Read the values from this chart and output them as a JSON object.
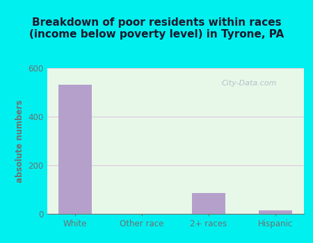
{
  "categories": [
    "White",
    "Other race",
    "2+ races",
    "Hispanic"
  ],
  "values": [
    530,
    0,
    85,
    15
  ],
  "bar_color": "#b5a0cc",
  "title_line1": "Breakdown of poor residents within races",
  "title_line2": "(income below poverty level) in Tyrone, PA",
  "ylabel": "absolute numbers",
  "ylim": [
    0,
    600
  ],
  "yticks": [
    0,
    200,
    400,
    600
  ],
  "outer_bg_color": "#00f0f0",
  "plot_bg_color": "#e8f8e8",
  "grid_color": "#ddc8dd",
  "title_color": "#1a1a2e",
  "axis_label_color": "#707070",
  "tick_label_color": "#707070",
  "watermark": "City-Data.com",
  "title_fontsize": 11,
  "ylabel_fontsize": 8.5,
  "tick_fontsize": 8.5
}
